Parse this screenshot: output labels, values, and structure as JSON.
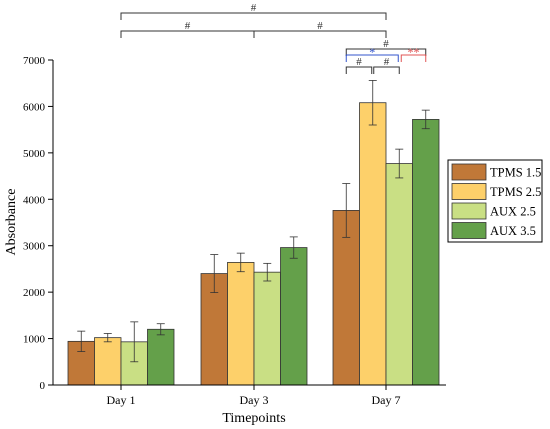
{
  "chart_data": {
    "type": "bar",
    "title": "",
    "xlabel": "Timepoints",
    "ylabel": "Absorbance",
    "ylim": [
      0,
      7000
    ],
    "yticks": [
      0,
      1000,
      2000,
      3000,
      4000,
      5000,
      6000,
      7000
    ],
    "grid": false,
    "legend_position": "right",
    "categories": [
      "Day 1",
      "Day 3",
      "Day 7"
    ],
    "series": [
      {
        "name": "TPMS 1.5",
        "color": "#c07838",
        "values": [
          940,
          2400,
          3760
        ],
        "errors": [
          220,
          410,
          580
        ]
      },
      {
        "name": "TPMS 2.5",
        "color": "#fdd06a",
        "values": [
          1020,
          2640,
          6080
        ],
        "errors": [
          90,
          200,
          480
        ]
      },
      {
        "name": "AUX 2.5",
        "color": "#c9df84",
        "values": [
          930,
          2430,
          4770
        ],
        "errors": [
          430,
          190,
          310
        ]
      },
      {
        "name": "AUX 3.5",
        "color": "#64a04a",
        "values": [
          1200,
          2960,
          5720
        ],
        "errors": [
          120,
          230,
          200
        ]
      }
    ],
    "annotations": {
      "between_days": [
        {
          "from": "Day 1",
          "to": "Day 7",
          "label": "#"
        },
        {
          "from": "Day 1",
          "to": "Day 3",
          "label": "#"
        },
        {
          "from": "Day 3",
          "to": "Day 7",
          "label": "#"
        }
      ],
      "day7_groups": [
        {
          "from_series": 0,
          "to_series": 3,
          "label": "#",
          "color": "#333333",
          "level": 3
        },
        {
          "from_series": 0,
          "to_series": 2,
          "label": "*",
          "color": "#3355cc",
          "level": 2
        },
        {
          "from_series": 2,
          "to_series": 3,
          "label": "**",
          "color": "#e05555",
          "level": 2
        },
        {
          "from_series": 0,
          "to_series": 1,
          "label": "#",
          "color": "#333333",
          "level": 1
        },
        {
          "from_series": 1,
          "to_series": 2,
          "label": "#",
          "color": "#333333",
          "level": 1
        }
      ]
    }
  }
}
